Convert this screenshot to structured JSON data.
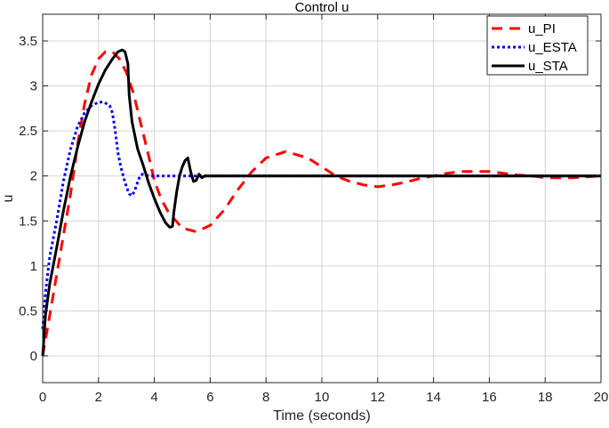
{
  "chart_data": {
    "type": "line",
    "title": "Control u",
    "xlabel": "Time (seconds)",
    "ylabel": "u",
    "xlim": [
      0,
      20
    ],
    "ylim": [
      -0.3,
      3.75
    ],
    "xticks": [
      0,
      2,
      4,
      6,
      8,
      10,
      12,
      14,
      16,
      18,
      20
    ],
    "xtick_labels": [
      "0",
      "2",
      "4",
      "6",
      "8",
      "10",
      "12",
      "14",
      "16",
      "18",
      "20"
    ],
    "yticks": [
      0,
      0.5,
      1,
      1.5,
      2,
      2.5,
      3,
      3.5
    ],
    "ytick_labels": [
      "0",
      "0.5",
      "1",
      "1.5",
      "2",
      "2.5",
      "3",
      "3.5"
    ],
    "grid": true,
    "legend_position": "upper right",
    "series": [
      {
        "name": "u_PI",
        "color": "#ff0000",
        "style": "dashed",
        "x": [
          0,
          0.25,
          0.5,
          0.75,
          1,
          1.25,
          1.5,
          1.75,
          2,
          2.25,
          2.5,
          2.75,
          3,
          3.25,
          3.5,
          3.75,
          4,
          4.25,
          4.5,
          5,
          5.5,
          6,
          6.5,
          7,
          7.5,
          8,
          8.7,
          9.5,
          10,
          10.5,
          11,
          11.5,
          12,
          12.5,
          13,
          13.5,
          14,
          14.5,
          15,
          15.5,
          16,
          16.5,
          17,
          17.5,
          18,
          18.5,
          19,
          19.5,
          20
        ],
        "y": [
          0,
          0.45,
          0.9,
          1.35,
          1.8,
          2.35,
          2.8,
          3.12,
          3.3,
          3.38,
          3.38,
          3.3,
          3.15,
          2.92,
          2.6,
          2.28,
          1.95,
          1.74,
          1.6,
          1.42,
          1.38,
          1.45,
          1.62,
          1.85,
          2.05,
          2.2,
          2.27,
          2.2,
          2.1,
          2.0,
          1.94,
          1.9,
          1.88,
          1.9,
          1.93,
          1.97,
          2.0,
          2.03,
          2.05,
          2.05,
          2.05,
          2.03,
          2.01,
          2.0,
          1.98,
          1.98,
          1.98,
          1.99,
          2.0
        ]
      },
      {
        "name": "u_ESTA",
        "color": "#0000ff",
        "style": "dotted",
        "x": [
          0,
          0.1,
          0.25,
          0.5,
          0.75,
          1,
          1.25,
          1.5,
          1.75,
          2,
          2.2,
          2.4,
          2.5,
          2.6,
          2.7,
          2.8,
          2.9,
          3,
          3.1,
          3.2,
          3.3,
          3.4,
          3.5,
          3.6,
          3.8,
          4,
          5,
          6,
          8,
          10,
          12,
          14,
          16,
          18,
          20
        ],
        "y": [
          0.3,
          0.7,
          1.1,
          1.5,
          1.95,
          2.3,
          2.55,
          2.7,
          2.78,
          2.82,
          2.82,
          2.78,
          2.7,
          2.5,
          2.25,
          2.1,
          1.98,
          1.88,
          1.8,
          1.78,
          1.84,
          1.93,
          2.01,
          2.02,
          2.0,
          2.0,
          2.0,
          2.0,
          2.0,
          2.0,
          2.0,
          2.0,
          2.0,
          2.0,
          2.0
        ]
      },
      {
        "name": "u_STA",
        "color": "#000000",
        "style": "solid",
        "x": [
          0,
          0.1,
          0.25,
          0.5,
          0.75,
          1,
          1.25,
          1.5,
          1.75,
          2,
          2.25,
          2.5,
          2.7,
          2.85,
          2.95,
          3.05,
          3.1,
          3.2,
          3.4,
          3.6,
          3.8,
          4,
          4.2,
          4.4,
          4.55,
          4.65,
          4.7,
          4.8,
          4.9,
          5,
          5.1,
          5.2,
          5.3,
          5.4,
          5.5,
          5.6,
          5.7,
          5.8,
          6,
          8,
          10,
          12,
          14,
          16,
          18,
          20
        ],
        "y": [
          0.0,
          0.45,
          0.8,
          1.2,
          1.62,
          2.0,
          2.32,
          2.6,
          2.82,
          3.02,
          3.18,
          3.3,
          3.38,
          3.4,
          3.38,
          3.25,
          2.9,
          2.6,
          2.3,
          2.12,
          1.92,
          1.75,
          1.6,
          1.48,
          1.43,
          1.44,
          1.6,
          1.82,
          2.0,
          2.1,
          2.17,
          2.2,
          2.05,
          1.94,
          1.95,
          2.02,
          1.98,
          2.0,
          2.0,
          2.0,
          2.0,
          2.0,
          2.0,
          2.0,
          2.0,
          2.0
        ]
      }
    ]
  }
}
